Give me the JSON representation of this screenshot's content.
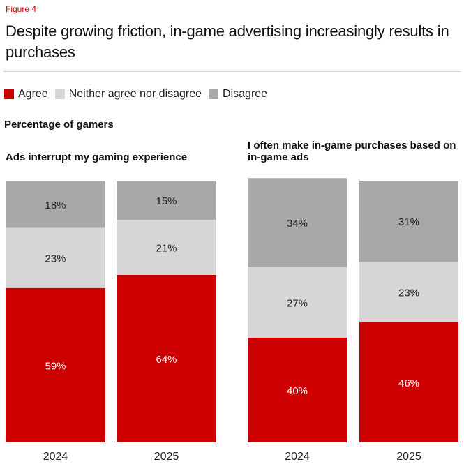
{
  "figure_label": "Figure 4",
  "title": "Despite growing friction, in-game advertising increasingly results in purchases",
  "legend": [
    {
      "label": "Agree",
      "color": "#cc0000"
    },
    {
      "label": "Neither agree nor disagree",
      "color": "#d6d6d6"
    },
    {
      "label": "Disagree",
      "color": "#a8a8a8"
    }
  ],
  "subtitle": "Percentage of gamers",
  "chart_data": [
    {
      "type": "bar",
      "stacked": true,
      "title": "Ads interrupt my gaming experience",
      "categories": [
        "2024",
        "2025"
      ],
      "series": [
        {
          "name": "Agree",
          "values": [
            59,
            64
          ],
          "labels": [
            "59%",
            "64%"
          ]
        },
        {
          "name": "Neither agree nor disagree",
          "values": [
            23,
            21
          ],
          "labels": [
            "23%",
            "21%"
          ]
        },
        {
          "name": "Disagree",
          "values": [
            18,
            15
          ],
          "labels": [
            "18%",
            "15%"
          ]
        }
      ],
      "ylim": [
        0,
        100
      ]
    },
    {
      "type": "bar",
      "stacked": true,
      "title": "I often make in-game purchases based on in-game ads",
      "categories": [
        "2024",
        "2025"
      ],
      "series": [
        {
          "name": "Agree",
          "values": [
            40,
            46
          ],
          "labels": [
            "40%",
            "46%"
          ]
        },
        {
          "name": "Neither agree nor disagree",
          "values": [
            27,
            23
          ],
          "labels": [
            "27%",
            "23%"
          ]
        },
        {
          "name": "Disagree",
          "values": [
            34,
            31
          ],
          "labels": [
            "34%",
            "31%"
          ]
        }
      ],
      "ylim": [
        0,
        100
      ]
    }
  ]
}
